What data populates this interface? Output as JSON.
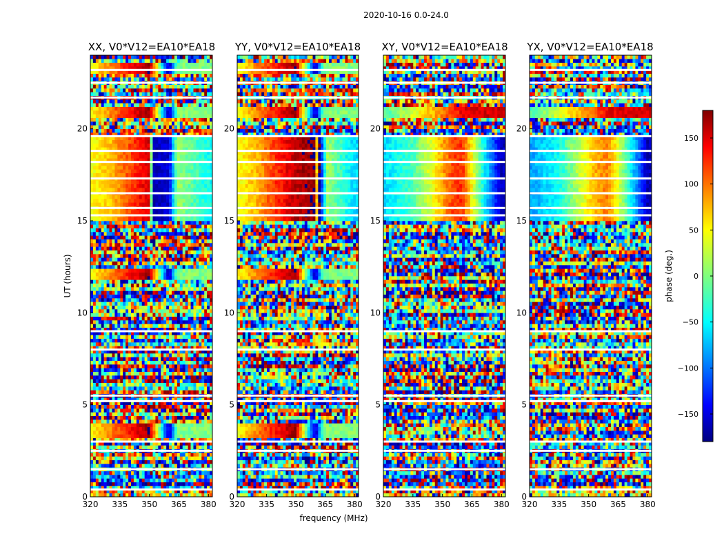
{
  "figure": {
    "suptitle": "2020-10-16 0.0-24.0"
  },
  "chart_data": {
    "type": "heatmap",
    "title": "2020-10-16 0.0-24.0",
    "xlabel": "frequency (MHz)",
    "ylabel": "UT (hours)",
    "xlim": [
      320,
      382
    ],
    "ylim": [
      0,
      24
    ],
    "xticks": [
      320,
      335,
      350,
      365,
      380
    ],
    "yticks": [
      0,
      5,
      10,
      15,
      20
    ],
    "colormap": "jet",
    "colorbar": {
      "label": "phase (deg.)",
      "range": [
        -180,
        180
      ],
      "ticks": [
        150,
        100,
        50,
        0,
        -50,
        -100,
        -150
      ],
      "tick_labels": [
        "150",
        "100",
        "50",
        "0",
        "−50",
        "−100",
        "−150"
      ]
    },
    "blank_ut_rows": [
      0.4,
      1.5,
      2.5,
      3.0,
      5.2,
      5.5,
      8.0,
      9.0,
      15.3,
      15.7,
      16.5,
      17.3,
      18.2,
      18.8,
      19.6,
      21.7,
      22.5,
      23.2
    ],
    "panels": [
      {
        "title": "XX, V0*V12=EA10*EA18",
        "coherent_blocks": [
          {
            "ut": [
              15.1,
              19.7
            ],
            "freq_phase": [
              [
                320,
                40
              ],
              [
                330,
                65
              ],
              [
                340,
                110
              ],
              [
                350,
                150
              ],
              [
                352,
                -160
              ],
              [
                360,
                -150
              ],
              [
                364,
                10
              ],
              [
                380,
                -40
              ]
            ]
          },
          {
            "ut": [
              20.6,
              21.2
            ],
            "freq_phase": [
              [
                320,
                40
              ],
              [
                335,
                110
              ],
              [
                350,
                170
              ],
              [
                360,
                -165
              ],
              [
                364,
                0
              ]
            ]
          },
          {
            "ut": [
              23.0,
              23.7
            ],
            "freq_phase": [
              [
                320,
                40
              ],
              [
                335,
                110
              ],
              [
                350,
                170
              ],
              [
                360,
                -165
              ],
              [
                364,
                0
              ]
            ]
          },
          {
            "ut": [
              11.8,
              12.4
            ],
            "freq_phase": [
              [
                320,
                40
              ],
              [
                335,
                110
              ],
              [
                350,
                170
              ],
              [
                360,
                -165
              ],
              [
                364,
                0
              ]
            ]
          },
          {
            "ut": [
              3.2,
              4.0
            ],
            "freq_phase": [
              [
                320,
                40
              ],
              [
                335,
                110
              ],
              [
                350,
                170
              ],
              [
                360,
                -165
              ],
              [
                364,
                0
              ]
            ]
          }
        ]
      },
      {
        "title": "YY, V0*V12=EA10*EA18",
        "coherent_blocks": [
          {
            "ut": [
              15.1,
              19.7
            ],
            "freq_phase": [
              [
                320,
                40
              ],
              [
                330,
                70
              ],
              [
                340,
                120
              ],
              [
                350,
                160
              ],
              [
                360,
                175
              ],
              [
                362,
                -170
              ],
              [
                366,
                10
              ],
              [
                380,
                -60
              ]
            ]
          },
          {
            "ut": [
              20.6,
              21.2
            ],
            "freq_phase": [
              [
                320,
                40
              ],
              [
                335,
                110
              ],
              [
                350,
                170
              ],
              [
                360,
                -165
              ],
              [
                364,
                0
              ]
            ]
          },
          {
            "ut": [
              23.0,
              23.7
            ],
            "freq_phase": [
              [
                320,
                40
              ],
              [
                335,
                110
              ],
              [
                350,
                170
              ],
              [
                360,
                -165
              ],
              [
                364,
                0
              ]
            ]
          },
          {
            "ut": [
              11.8,
              12.4
            ],
            "freq_phase": [
              [
                320,
                40
              ],
              [
                335,
                110
              ],
              [
                350,
                170
              ],
              [
                360,
                -165
              ],
              [
                364,
                0
              ]
            ]
          },
          {
            "ut": [
              3.2,
              4.0
            ],
            "freq_phase": [
              [
                320,
                40
              ],
              [
                335,
                110
              ],
              [
                350,
                170
              ],
              [
                360,
                -165
              ],
              [
                364,
                0
              ]
            ]
          }
        ]
      },
      {
        "title": "XY, V0*V12=EA10*EA18",
        "coherent_blocks": [
          {
            "ut": [
              15.1,
              19.7
            ],
            "freq_phase": [
              [
                320,
                -60
              ],
              [
                335,
                -20
              ],
              [
                345,
                40
              ],
              [
                355,
                110
              ],
              [
                360,
                120
              ],
              [
                368,
                0
              ],
              [
                380,
                -160
              ]
            ]
          },
          {
            "ut": [
              20.6,
              21.2
            ],
            "freq_phase": [
              [
                320,
                -20
              ],
              [
                335,
                30
              ],
              [
                350,
                90
              ],
              [
                360,
                140
              ],
              [
                370,
                150
              ]
            ]
          }
        ]
      },
      {
        "title": "YX, V0*V12=EA10*EA18",
        "coherent_blocks": [
          {
            "ut": [
              15.1,
              19.7
            ],
            "freq_phase": [
              [
                320,
                -80
              ],
              [
                335,
                -40
              ],
              [
                345,
                20
              ],
              [
                355,
                80
              ],
              [
                360,
                90
              ],
              [
                368,
                0
              ],
              [
                380,
                -160
              ]
            ]
          },
          {
            "ut": [
              20.6,
              21.2
            ],
            "freq_phase": [
              [
                320,
                -20
              ],
              [
                335,
                30
              ],
              [
                350,
                90
              ],
              [
                360,
                140
              ],
              [
                370,
                150
              ]
            ]
          }
        ]
      }
    ]
  }
}
